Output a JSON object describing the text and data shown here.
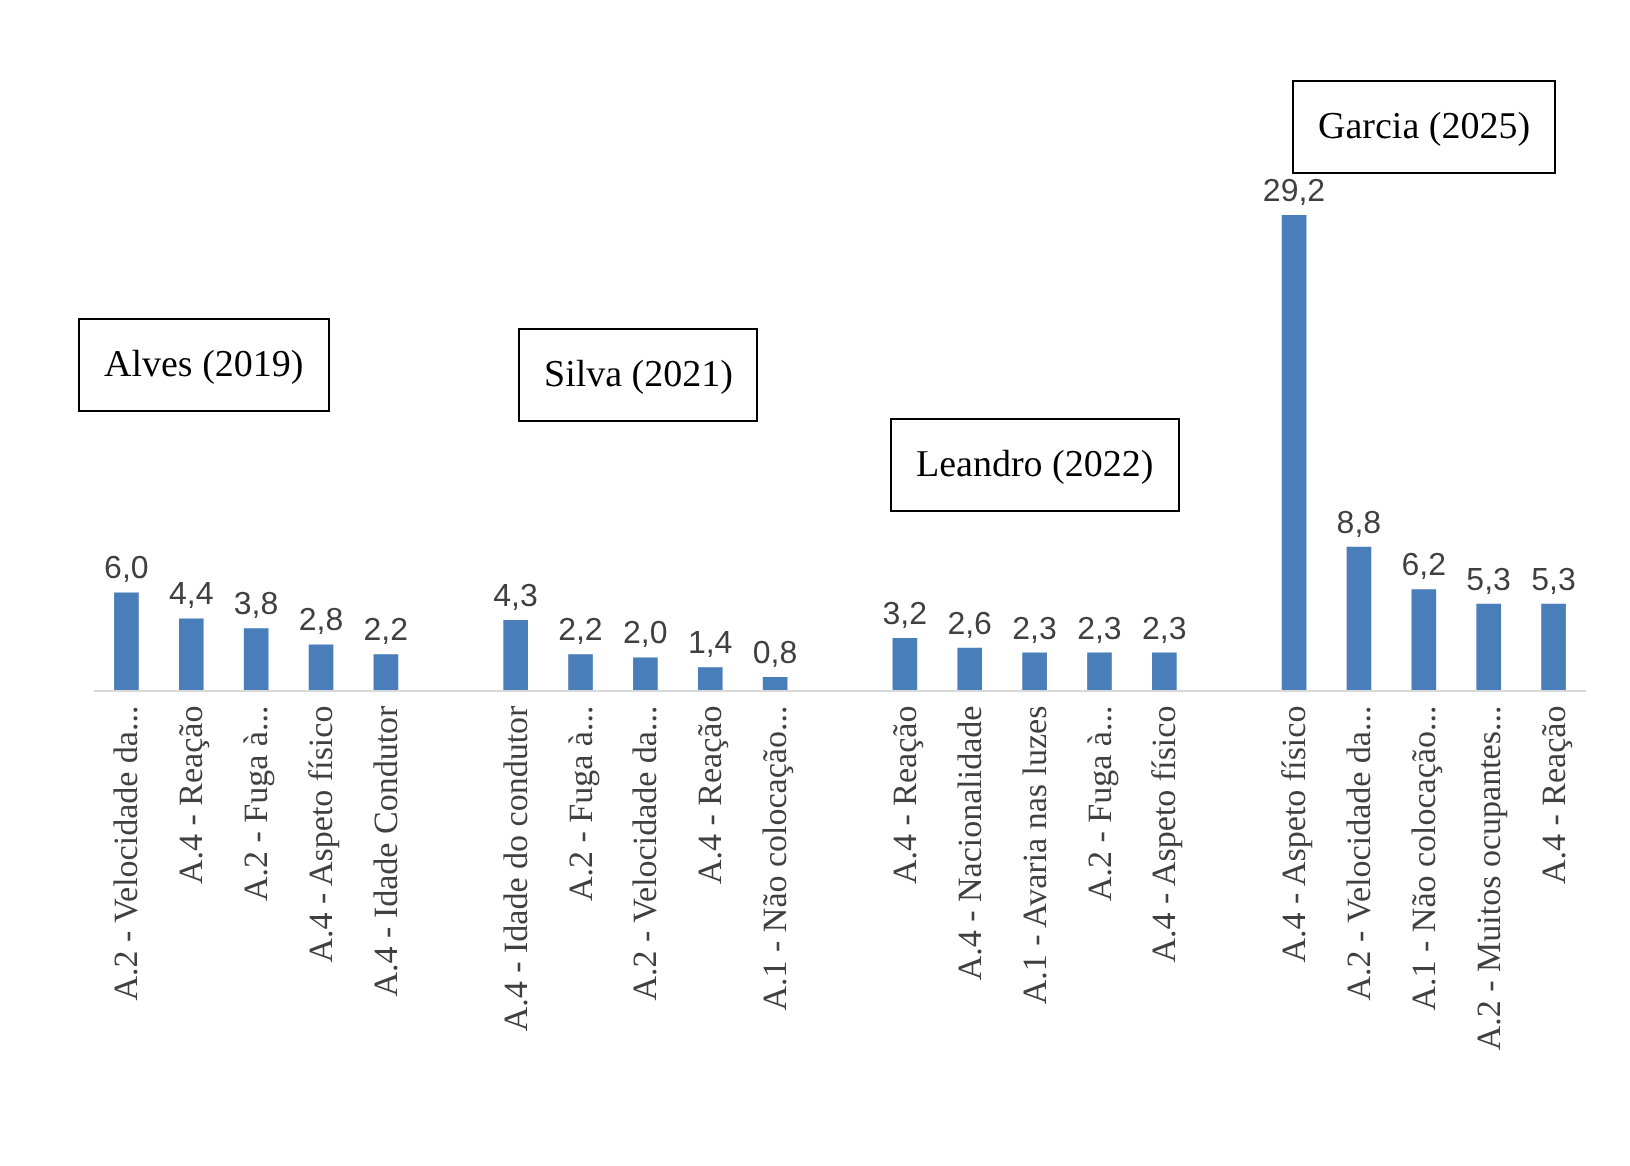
{
  "chart_data": {
    "type": "bar",
    "annotations": [
      "Alves (2019)",
      "Silva (2021)",
      "Leandro (2022)",
      "Garcia (2025)"
    ],
    "categories": [
      "A.2 - Velocidade da...",
      "A.4 - Reação",
      "A.2 - Fuga à...",
      "A.4 - Aspeto físico",
      "A.4 - Idade Condutor",
      null,
      "A.4 - Idade do condutor",
      "A.2 - Fuga à...",
      "A.2 - Velocidade da...",
      "A.4 - Reação",
      "A.1 - Não colocação...",
      null,
      "A.4 - Reação",
      "A.4 - Nacionalidade",
      "A.1 - Avaria nas luzes",
      "A.2 - Fuga à...",
      "A.4 - Aspeto físico",
      null,
      "A.4 - Aspeto físico",
      "A.2 - Velocidade da...",
      "A.1 - Não colocação...",
      "A.2 - Muitos ocupantes...",
      "A.4 - Reação"
    ],
    "values": [
      6.0,
      4.4,
      3.8,
      2.8,
      2.2,
      null,
      4.3,
      2.2,
      2.0,
      1.4,
      0.8,
      null,
      3.2,
      2.6,
      2.3,
      2.3,
      2.3,
      null,
      29.2,
      8.8,
      6.2,
      5.3,
      5.3
    ],
    "value_labels": [
      "6,0",
      "4,4",
      "3,8",
      "2,8",
      "2,2",
      null,
      "4,3",
      "2,2",
      "2,0",
      "1,4",
      "0,8",
      null,
      "3,2",
      "2,6",
      "2,3",
      "2,3",
      "2,3",
      null,
      "29,2",
      "8,8",
      "6,2",
      "5,3",
      "5,3"
    ],
    "color": "#4a7ebb",
    "legend": false
  }
}
